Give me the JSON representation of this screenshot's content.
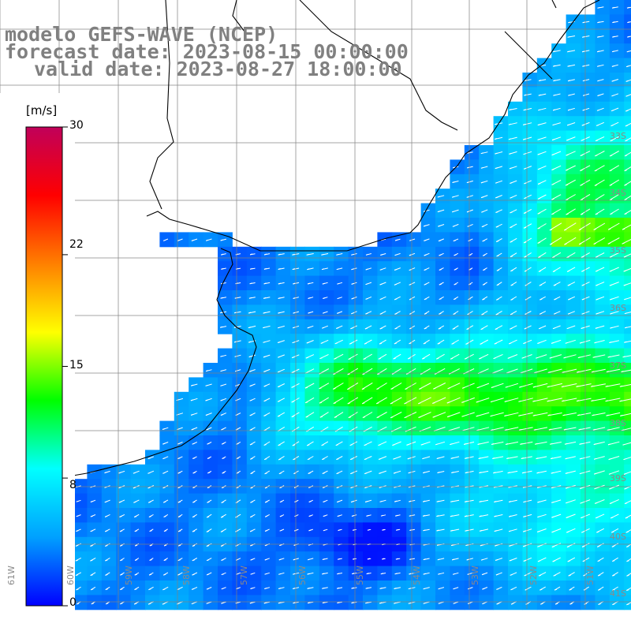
{
  "title": {
    "line1": "modelo GEFS-WAVE (NCEP)",
    "line2": "forecast date: 2023-08-15 00:00:00",
    "line3": "valid date: 2023-08-27 18:00:00"
  },
  "colorbar": {
    "unit": "[m/s]",
    "range": [
      0,
      30
    ],
    "ticks": [
      "30",
      "22",
      "15",
      "8",
      "0"
    ],
    "tick_values": [
      30,
      22,
      15,
      8,
      0
    ],
    "stops": [
      "#0000ff",
      "#00a0ff",
      "#00ffff",
      "#00ff00",
      "#ffff00",
      "#ff8000",
      "#ff0000",
      "#c0005a"
    ]
  },
  "map": {
    "lat_labels": [
      "33S",
      "34S",
      "35S",
      "36S",
      "37S",
      "38S",
      "39S",
      "40S",
      "41S"
    ],
    "lon_labels": [
      "61W",
      "60W",
      "59W",
      "58W",
      "57W",
      "56W",
      "55W",
      "54W",
      "53W",
      "52W",
      "51W"
    ],
    "grid_color": "#808080",
    "land_color": "#ffffff",
    "coast_color": "#000000",
    "vector_color": "#ffffff"
  }
}
